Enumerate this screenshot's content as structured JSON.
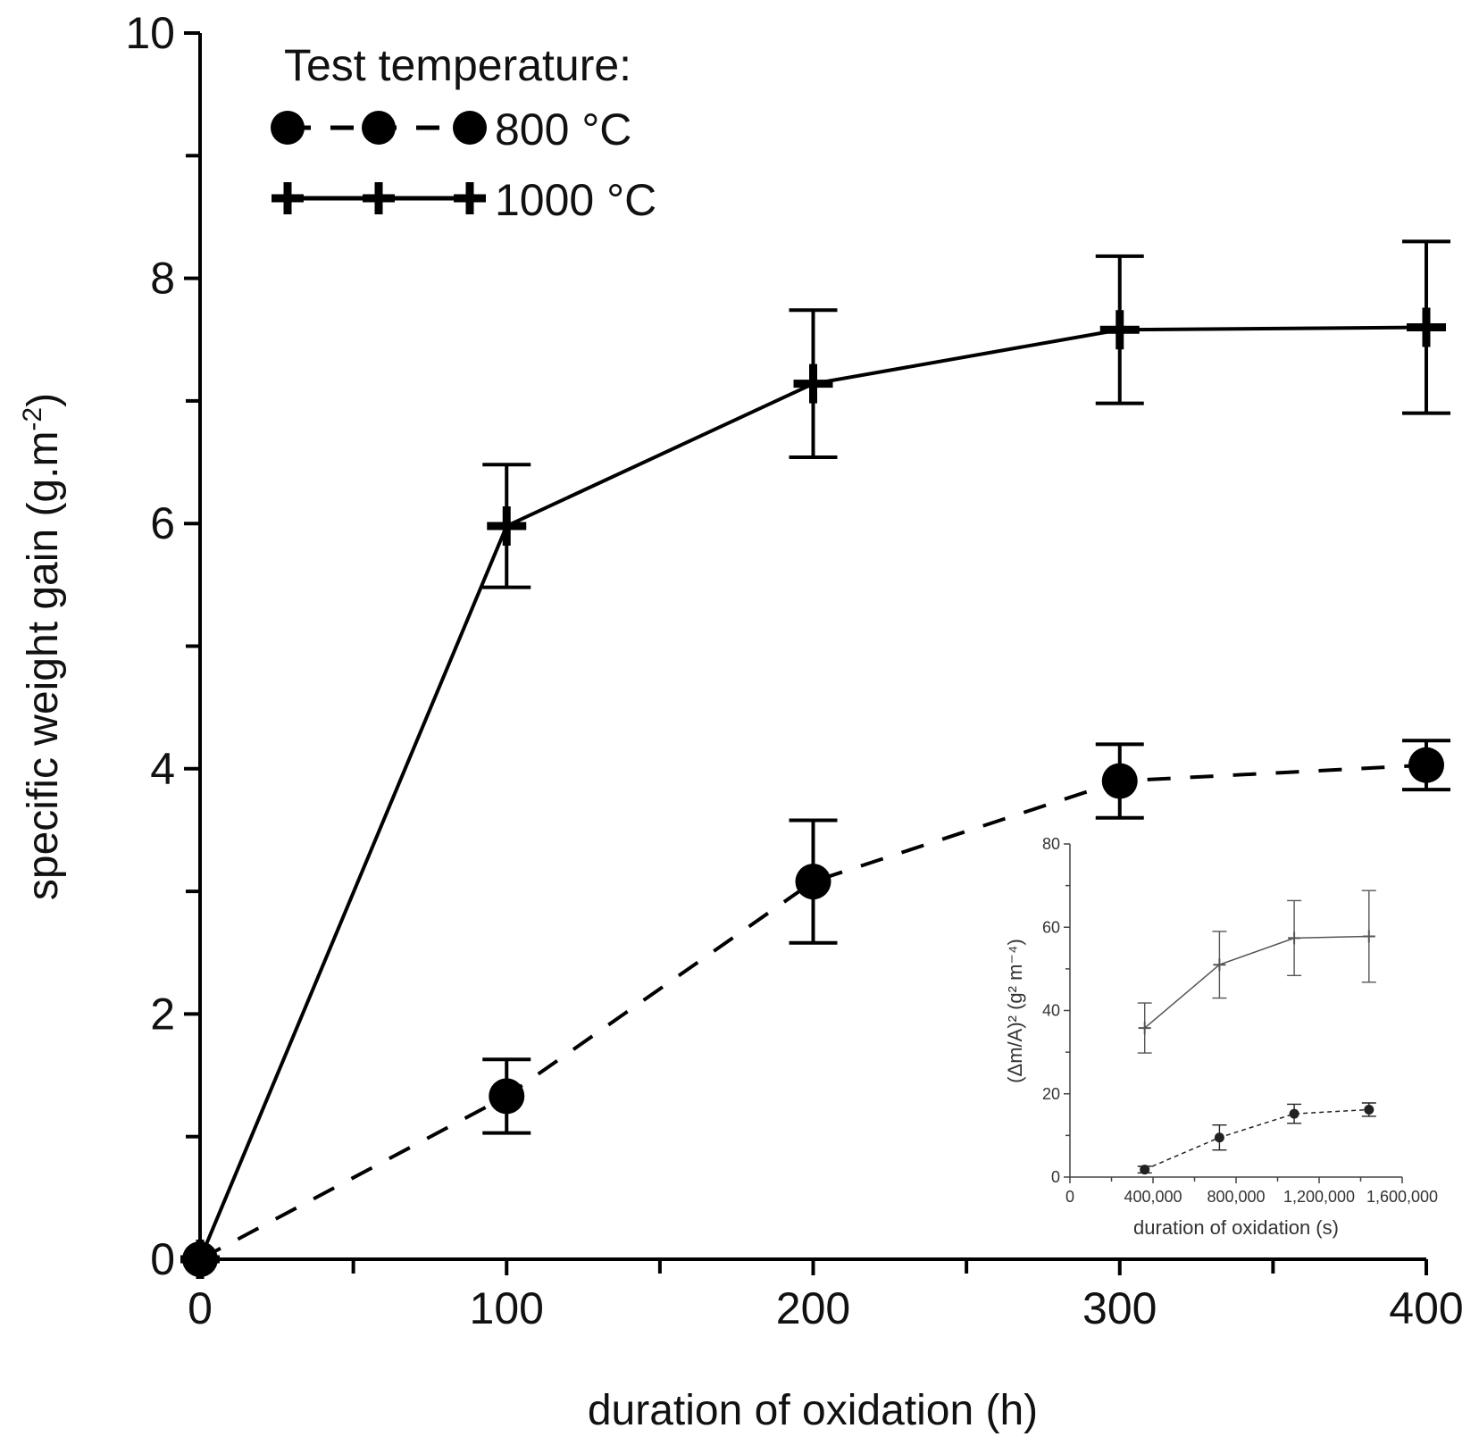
{
  "chart_data": [
    {
      "type": "line",
      "panel": "main",
      "title": "",
      "xlabel": "duration of oxidation (h)",
      "ylabel": "specific weight gain (g.m",
      "ylabel_sup": "-2",
      "ylabel_end": ")",
      "xlim": [
        0,
        400
      ],
      "ylim": [
        0,
        10
      ],
      "x_ticks": [
        0,
        100,
        200,
        300,
        400
      ],
      "x_tick_labels": [
        "0",
        "100",
        "200",
        "300",
        "400"
      ],
      "x_minor_ticks": [
        50,
        150,
        250,
        350
      ],
      "y_ticks": [
        0,
        2,
        4,
        6,
        8,
        10
      ],
      "y_tick_labels": [
        "0",
        "2",
        "4",
        "6",
        "8",
        "10"
      ],
      "y_minor_ticks": [
        1,
        3,
        5,
        7,
        9
      ],
      "legend": {
        "title": "Test temperature:",
        "position": "top-left",
        "entries": [
          "800 °C",
          "1000 °C"
        ]
      },
      "series": [
        {
          "name": "800 °C",
          "marker": "circle",
          "line": "dashed",
          "color": "#000000",
          "x": [
            0,
            100,
            200,
            300,
            400
          ],
          "y": [
            0,
            1.33,
            3.08,
            3.9,
            4.03
          ],
          "err": [
            0,
            0.3,
            0.5,
            0.3,
            0.2
          ]
        },
        {
          "name": "1000 °C",
          "marker": "plus",
          "line": "solid",
          "color": "#000000",
          "x": [
            0,
            100,
            200,
            300,
            400
          ],
          "y": [
            0,
            5.98,
            7.14,
            7.58,
            7.6
          ],
          "err": [
            0,
            0.5,
            0.6,
            0.6,
            0.7
          ]
        }
      ]
    },
    {
      "type": "line",
      "panel": "inset",
      "title": "",
      "xlabel": "duration of oxidation (s)",
      "ylabel": "(Δm/A)² (g² m⁻⁴)",
      "xlim": [
        0,
        1600000
      ],
      "ylim": [
        0,
        80
      ],
      "x_ticks": [
        0,
        400000,
        800000,
        1200000,
        1600000
      ],
      "x_tick_labels": [
        "0",
        "400,000",
        "800,000",
        "1,200,000",
        "1,600,000"
      ],
      "x_minor_ticks": [
        200000,
        600000,
        1000000,
        1400000
      ],
      "y_ticks": [
        0,
        20,
        40,
        60,
        80
      ],
      "y_tick_labels": [
        "0",
        "20",
        "40",
        "60",
        "80"
      ],
      "y_minor_ticks": [
        10,
        30,
        50,
        70
      ],
      "series": [
        {
          "name": "800 °C",
          "marker": "circle",
          "line": "dashed",
          "color": "#222222",
          "x": [
            360000,
            720000,
            1080000,
            1440000
          ],
          "y": [
            1.8,
            9.5,
            15.2,
            16.2
          ],
          "err": [
            0.8,
            3.0,
            2.3,
            1.6
          ]
        },
        {
          "name": "1000 °C",
          "marker": "plus",
          "line": "solid",
          "color": "#555555",
          "x": [
            360000,
            720000,
            1080000,
            1440000
          ],
          "y": [
            35.8,
            51.0,
            57.4,
            57.8
          ],
          "err": [
            6.0,
            8.0,
            9.0,
            11.0
          ]
        }
      ]
    }
  ]
}
